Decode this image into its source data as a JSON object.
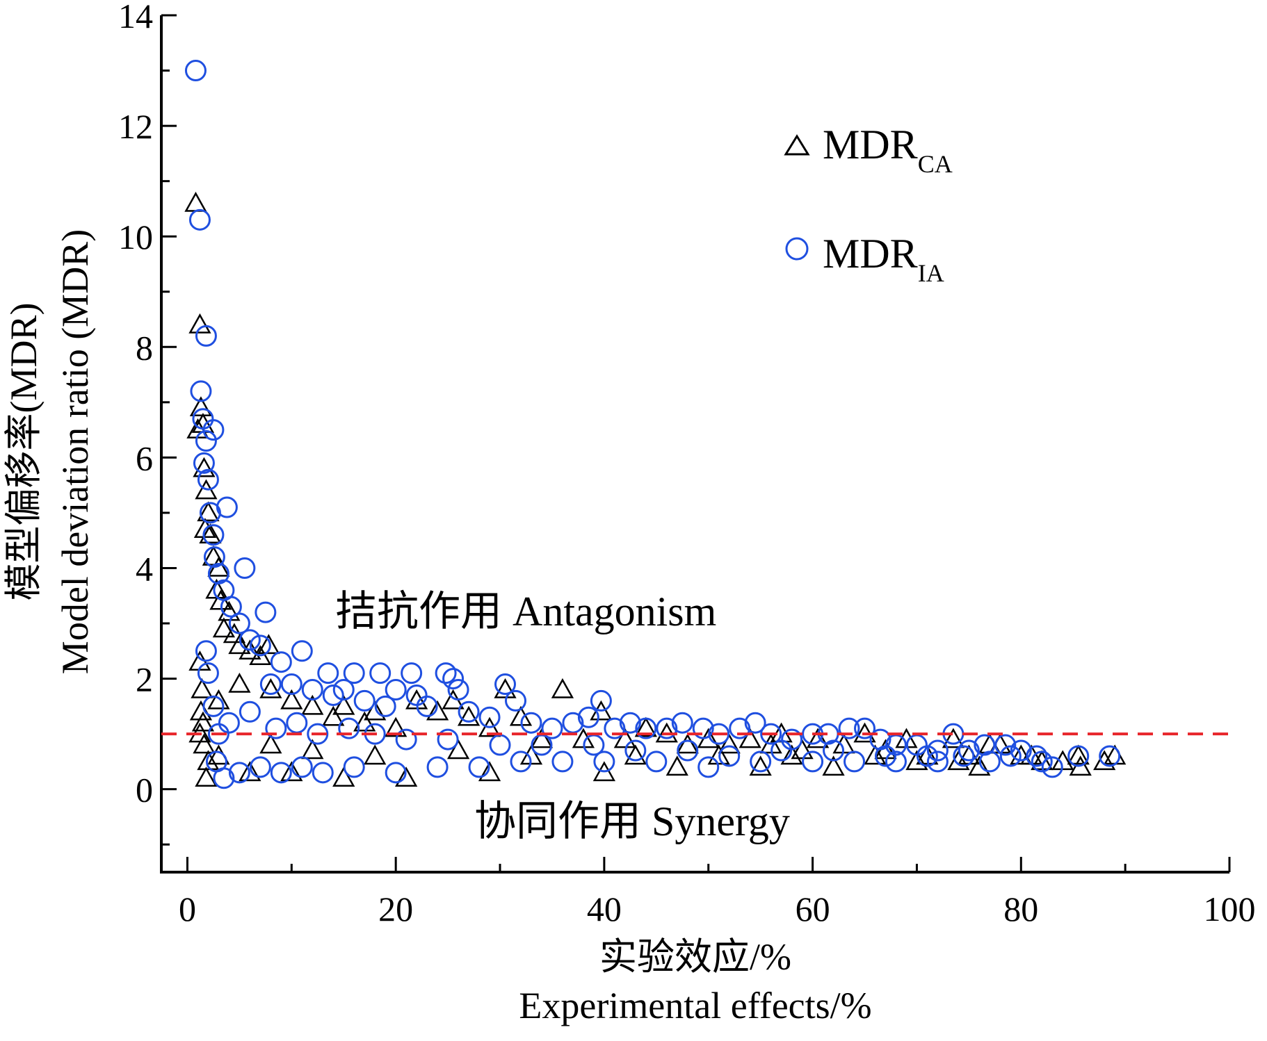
{
  "chart_data": {
    "type": "scatter",
    "xlabel_cn": "实验效应/%",
    "xlabel_en": "Experimental effects/%",
    "ylabel_cn": "模型偏移率(MDR)",
    "ylabel_en": "Model deviation ratio (MDR)",
    "xlim": [
      -2.5,
      100
    ],
    "ylim": [
      -1.5,
      14
    ],
    "x_ticks": [
      0,
      20,
      40,
      60,
      80,
      100
    ],
    "x_tick_labels": [
      "0",
      "20",
      "40",
      "60",
      "80",
      "100"
    ],
    "y_ticks": [
      0,
      2,
      4,
      6,
      8,
      10,
      12,
      14
    ],
    "y_tick_labels": [
      "0",
      "2",
      "4",
      "6",
      "8",
      "10",
      "12",
      "14"
    ],
    "reference_line": {
      "y": 1,
      "color": "#e8262b",
      "style": "dashed"
    },
    "annotations": {
      "antagonism": "拮抗作用 Antagonism",
      "synergy": "协同作用 Synergy"
    },
    "legend": {
      "placement": "top-right",
      "entries": [
        {
          "name": "MDR",
          "sub": "CA",
          "marker": "triangle",
          "color": "#000000"
        },
        {
          "name": "MDR",
          "sub": "IA",
          "marker": "circle",
          "color": "#1f4fe0"
        }
      ]
    },
    "series": [
      {
        "name": "MDR_CA",
        "marker": "triangle",
        "color": "#000000",
        "points": [
          [
            0.8,
            10.6
          ],
          [
            1.2,
            8.4
          ],
          [
            1.3,
            6.9
          ],
          [
            1.0,
            6.5
          ],
          [
            1.5,
            6.6
          ],
          [
            1.6,
            5.8
          ],
          [
            1.8,
            5.4
          ],
          [
            2.0,
            5.0
          ],
          [
            1.7,
            4.7
          ],
          [
            2.2,
            4.6
          ],
          [
            2.5,
            4.2
          ],
          [
            3.0,
            4.0
          ],
          [
            2.8,
            3.6
          ],
          [
            3.2,
            3.4
          ],
          [
            4.0,
            3.2
          ],
          [
            3.5,
            2.9
          ],
          [
            4.5,
            2.8
          ],
          [
            5.0,
            2.6
          ],
          [
            6.0,
            2.5
          ],
          [
            7.0,
            2.4
          ],
          [
            7.8,
            2.6
          ],
          [
            1.2,
            2.3
          ],
          [
            1.4,
            1.8
          ],
          [
            1.3,
            1.4
          ],
          [
            1.5,
            1.2
          ],
          [
            1.2,
            1.0
          ],
          [
            1.6,
            0.8
          ],
          [
            1.8,
            0.2
          ],
          [
            2.0,
            0.5
          ],
          [
            3.0,
            1.6
          ],
          [
            5.0,
            1.9
          ],
          [
            8.0,
            1.8
          ],
          [
            10.0,
            1.6
          ],
          [
            12.0,
            1.5
          ],
          [
            14.0,
            1.3
          ],
          [
            15.0,
            1.5
          ],
          [
            17.0,
            1.2
          ],
          [
            18.0,
            1.4
          ],
          [
            20.0,
            1.1
          ],
          [
            22.0,
            1.6
          ],
          [
            24.0,
            1.4
          ],
          [
            25.5,
            1.6
          ],
          [
            27.0,
            1.3
          ],
          [
            29.0,
            1.1
          ],
          [
            30.5,
            1.8
          ],
          [
            32.0,
            1.3
          ],
          [
            34.0,
            0.9
          ],
          [
            36.0,
            1.8
          ],
          [
            38.0,
            0.9
          ],
          [
            39.7,
            1.4
          ],
          [
            42.0,
            0.9
          ],
          [
            44.0,
            1.1
          ],
          [
            46.0,
            1.0
          ],
          [
            48.0,
            0.8
          ],
          [
            50.0,
            0.9
          ],
          [
            52.0,
            0.8
          ],
          [
            54.0,
            0.9
          ],
          [
            56.0,
            0.8
          ],
          [
            57.0,
            1.0
          ],
          [
            59.0,
            0.7
          ],
          [
            60.5,
            0.9
          ],
          [
            63.0,
            0.8
          ],
          [
            65.0,
            1.0
          ],
          [
            67.0,
            0.7
          ],
          [
            69.0,
            0.9
          ],
          [
            71.0,
            0.6
          ],
          [
            73.5,
            0.9
          ],
          [
            75.0,
            0.6
          ],
          [
            77.0,
            0.8
          ],
          [
            78.0,
            0.8
          ],
          [
            80.0,
            0.6
          ],
          [
            81.0,
            0.6
          ],
          [
            82.0,
            0.5
          ],
          [
            84.0,
            0.5
          ],
          [
            85.5,
            0.6
          ],
          [
            85.7,
            0.4
          ],
          [
            88.0,
            0.5
          ],
          [
            89.0,
            0.6
          ],
          [
            6.0,
            0.3
          ],
          [
            10.0,
            0.3
          ],
          [
            15.0,
            0.2
          ],
          [
            21.0,
            0.2
          ],
          [
            29.0,
            0.3
          ],
          [
            40.0,
            0.3
          ],
          [
            47.0,
            0.4
          ],
          [
            55.0,
            0.4
          ],
          [
            62.0,
            0.4
          ],
          [
            70.0,
            0.5
          ],
          [
            76.0,
            0.4
          ],
          [
            3.0,
            0.6
          ],
          [
            8.0,
            0.8
          ],
          [
            12.0,
            0.7
          ],
          [
            18.0,
            0.6
          ],
          [
            26.0,
            0.7
          ],
          [
            33.0,
            0.6
          ],
          [
            43.0,
            0.6
          ],
          [
            51.0,
            0.6
          ],
          [
            58.0,
            0.6
          ],
          [
            66.0,
            0.6
          ],
          [
            74.0,
            0.5
          ]
        ]
      },
      {
        "name": "MDR_IA",
        "marker": "circle",
        "color": "#1f4fe0",
        "points": [
          [
            0.8,
            13.0
          ],
          [
            1.2,
            10.3
          ],
          [
            1.8,
            8.2
          ],
          [
            1.3,
            7.2
          ],
          [
            1.5,
            6.7
          ],
          [
            2.5,
            6.5
          ],
          [
            1.8,
            6.3
          ],
          [
            1.6,
            5.9
          ],
          [
            2.0,
            5.6
          ],
          [
            3.8,
            5.1
          ],
          [
            2.2,
            5.0
          ],
          [
            2.5,
            4.6
          ],
          [
            2.6,
            4.2
          ],
          [
            5.5,
            4.0
          ],
          [
            3.0,
            3.9
          ],
          [
            3.5,
            3.6
          ],
          [
            4.2,
            3.3
          ],
          [
            7.5,
            3.2
          ],
          [
            5.0,
            3.0
          ],
          [
            6.0,
            2.7
          ],
          [
            7.0,
            2.6
          ],
          [
            1.8,
            2.5
          ],
          [
            11.0,
            2.5
          ],
          [
            2.0,
            2.1
          ],
          [
            9.0,
            2.3
          ],
          [
            13.5,
            2.1
          ],
          [
            16.0,
            2.1
          ],
          [
            18.5,
            2.1
          ],
          [
            21.5,
            2.1
          ],
          [
            24.8,
            2.1
          ],
          [
            25.5,
            2.0
          ],
          [
            26.0,
            1.8
          ],
          [
            30.5,
            1.9
          ],
          [
            31.5,
            1.6
          ],
          [
            39.7,
            1.6
          ],
          [
            20.0,
            1.8
          ],
          [
            22.0,
            1.7
          ],
          [
            15.0,
            1.8
          ],
          [
            12.0,
            1.8
          ],
          [
            8.0,
            1.9
          ],
          [
            10.0,
            1.9
          ],
          [
            14.0,
            1.7
          ],
          [
            17.0,
            1.6
          ],
          [
            19.0,
            1.5
          ],
          [
            23.0,
            1.5
          ],
          [
            27.0,
            1.4
          ],
          [
            29.0,
            1.3
          ],
          [
            33.0,
            1.2
          ],
          [
            35.0,
            1.1
          ],
          [
            37.0,
            1.2
          ],
          [
            38.5,
            1.3
          ],
          [
            41.0,
            1.1
          ],
          [
            42.5,
            1.2
          ],
          [
            44.0,
            1.1
          ],
          [
            46.0,
            1.1
          ],
          [
            47.5,
            1.2
          ],
          [
            49.5,
            1.1
          ],
          [
            51.0,
            1.0
          ],
          [
            53.0,
            1.1
          ],
          [
            54.5,
            1.2
          ],
          [
            56.0,
            1.0
          ],
          [
            58.0,
            0.9
          ],
          [
            60.0,
            1.0
          ],
          [
            61.5,
            1.0
          ],
          [
            63.5,
            1.1
          ],
          [
            65.0,
            1.1
          ],
          [
            66.5,
            0.9
          ],
          [
            68.0,
            0.8
          ],
          [
            70.0,
            0.8
          ],
          [
            72.0,
            0.7
          ],
          [
            73.5,
            1.0
          ],
          [
            75.0,
            0.7
          ],
          [
            76.5,
            0.8
          ],
          [
            78.5,
            0.8
          ],
          [
            80.0,
            0.7
          ],
          [
            81.5,
            0.6
          ],
          [
            82.0,
            0.5
          ],
          [
            85.5,
            0.6
          ],
          [
            88.5,
            0.6
          ],
          [
            2.5,
            1.5
          ],
          [
            3.0,
            1.0
          ],
          [
            2.8,
            0.5
          ],
          [
            3.5,
            0.2
          ],
          [
            5.0,
            0.3
          ],
          [
            7.0,
            0.4
          ],
          [
            9.0,
            0.3
          ],
          [
            11.0,
            0.4
          ],
          [
            13.0,
            0.3
          ],
          [
            16.0,
            0.4
          ],
          [
            20.0,
            0.3
          ],
          [
            24.0,
            0.4
          ],
          [
            28.0,
            0.4
          ],
          [
            32.0,
            0.5
          ],
          [
            36.0,
            0.5
          ],
          [
            40.0,
            0.5
          ],
          [
            45.0,
            0.5
          ],
          [
            50.0,
            0.4
          ],
          [
            55.0,
            0.5
          ],
          [
            60.0,
            0.5
          ],
          [
            64.0,
            0.5
          ],
          [
            68.0,
            0.5
          ],
          [
            72.0,
            0.5
          ],
          [
            77.0,
            0.5
          ],
          [
            4.0,
            1.2
          ],
          [
            6.0,
            1.4
          ],
          [
            8.5,
            1.1
          ],
          [
            10.5,
            1.2
          ],
          [
            12.5,
            1.0
          ],
          [
            15.5,
            1.1
          ],
          [
            18.0,
            1.0
          ],
          [
            21.0,
            0.9
          ],
          [
            25.0,
            0.9
          ],
          [
            30.0,
            0.8
          ],
          [
            34.0,
            0.8
          ],
          [
            39.0,
            0.8
          ],
          [
            43.0,
            0.7
          ],
          [
            48.0,
            0.7
          ],
          [
            52.0,
            0.6
          ],
          [
            57.0,
            0.7
          ],
          [
            62.0,
            0.7
          ],
          [
            67.0,
            0.6
          ],
          [
            71.0,
            0.6
          ],
          [
            74.5,
            0.6
          ],
          [
            79.0,
            0.6
          ],
          [
            83.0,
            0.4
          ]
        ]
      }
    ]
  }
}
